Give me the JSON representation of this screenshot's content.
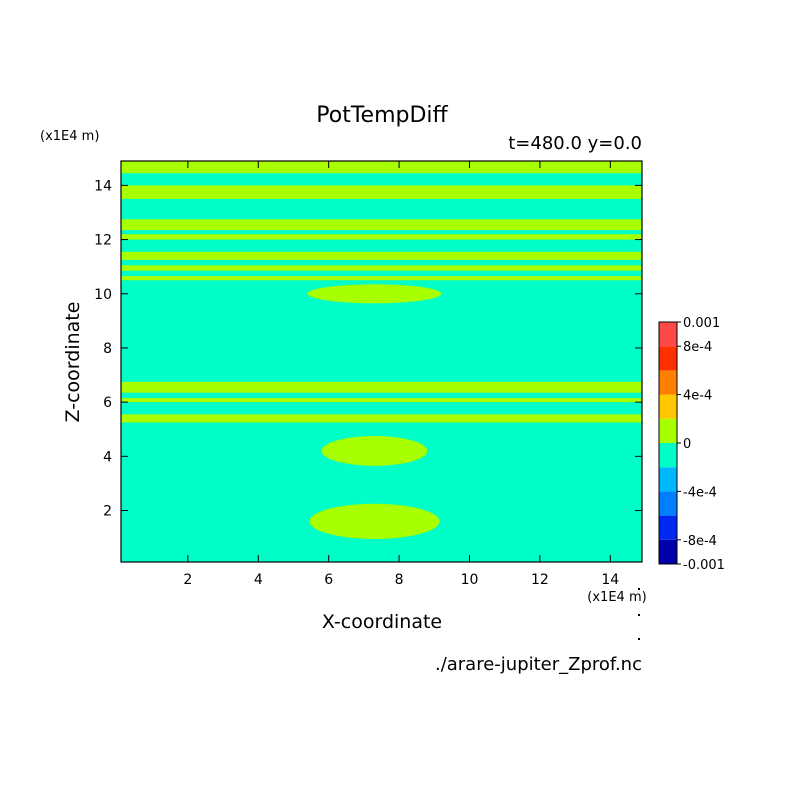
{
  "chart_data": {
    "type": "heatmap",
    "title": "PotTempDiff",
    "subtitle": "t=480.0 y=0.0",
    "xlabel": "X-coordinate",
    "ylabel": "Z-coordinate",
    "x_unit": "(x1E4 m)",
    "y_unit": "(x1E4 m)",
    "xlim": [
      0.1,
      14.9
    ],
    "ylim": [
      0.1,
      14.9
    ],
    "x_ticks": [
      2,
      4,
      6,
      8,
      10,
      12,
      14
    ],
    "y_ticks": [
      2,
      4,
      6,
      8,
      10,
      12,
      14
    ],
    "x_tick_labels": [
      "2",
      "4",
      "6",
      "8",
      "10",
      "12",
      "14"
    ],
    "y_tick_labels": [
      "2",
      "4",
      "6",
      "8",
      "10",
      "12",
      "14"
    ],
    "colorbar": {
      "levels": [
        -0.001,
        -0.0008,
        -0.0006,
        -0.0004,
        -0.0002,
        0,
        0.0002,
        0.0004,
        0.0006,
        0.0008,
        0.001
      ],
      "colors": [
        "#0000a8",
        "#0028f0",
        "#0080ff",
        "#00b8ff",
        "#00ffc8",
        "#a8ff00",
        "#ffc800",
        "#ff8000",
        "#ff3000",
        "#ff4848"
      ],
      "labels": [
        {
          "value": 0.001,
          "text": "0.001"
        },
        {
          "value": 0.0008,
          "text": "8e-4"
        },
        {
          "value": 0.0004,
          "text": "4e-4"
        },
        {
          "value": 0,
          "text": "0"
        },
        {
          "value": -0.0004,
          "text": "-4e-4"
        },
        {
          "value": -0.0008,
          "text": "-8e-4"
        },
        {
          "value": -0.001,
          "text": "-0.001"
        }
      ]
    },
    "background_class": "-2e-4 to 0",
    "background_color": "#00ffc8",
    "positive_class": "0 to 2e-4",
    "positive_color": "#a8ff00",
    "positive_bands_z": [
      [
        14.45,
        14.9
      ],
      [
        13.5,
        14.0
      ],
      [
        12.35,
        12.75
      ],
      [
        12.0,
        12.2
      ],
      [
        11.25,
        11.55
      ],
      [
        10.85,
        11.05
      ],
      [
        10.5,
        10.65
      ],
      [
        6.35,
        6.75
      ],
      [
        6.0,
        6.15
      ],
      [
        5.25,
        5.55
      ]
    ],
    "positive_blobs": [
      {
        "x": 7.3,
        "z": 1.6,
        "rx": 1.85,
        "rz": 0.65
      },
      {
        "x": 7.3,
        "z": 4.2,
        "rx": 1.5,
        "rz": 0.55
      },
      {
        "x": 7.3,
        "z": 10.0,
        "rx": 1.9,
        "rz": 0.35
      }
    ],
    "source_file": "./arare-jupiter_Zprof.nc"
  }
}
